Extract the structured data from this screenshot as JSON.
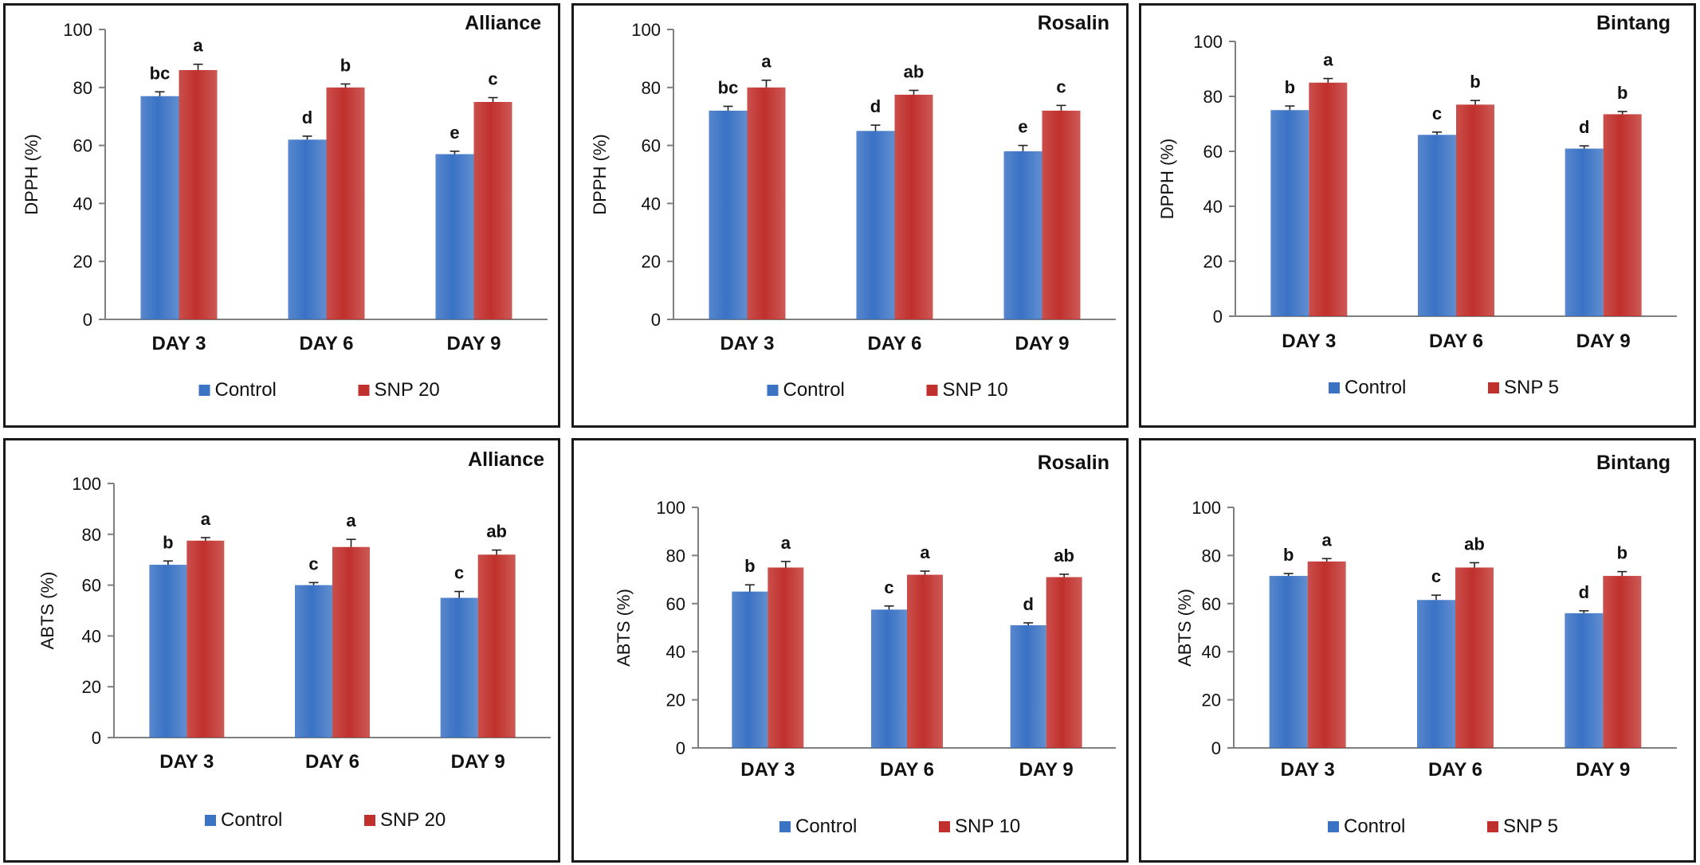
{
  "colors": {
    "control": "#3a72c4",
    "treatment": "#c0302c",
    "axis": "#7f7f7f"
  },
  "chart_data": [
    {
      "type": "bar",
      "title": "Alliance",
      "ylabel": "DPPH (%)",
      "ylim": [
        0,
        100
      ],
      "yticks": [
        "0",
        "20",
        "40",
        "60",
        "80",
        "100"
      ],
      "categories": [
        "DAY 3",
        "DAY 6",
        "DAY 9"
      ],
      "series": [
        {
          "name": "Control",
          "values": [
            77,
            62,
            57
          ],
          "errors": [
            1.5,
            1.2,
            1.0
          ],
          "letters": [
            "bc",
            "d",
            "e"
          ]
        },
        {
          "name": "SNP 20",
          "values": [
            86,
            80,
            75
          ],
          "errors": [
            2.0,
            1.2,
            1.5
          ],
          "letters": [
            "a",
            "b",
            "c"
          ]
        }
      ]
    },
    {
      "type": "bar",
      "title": "Rosalin",
      "ylabel": "DPPH (%)",
      "ylim": [
        0,
        100
      ],
      "yticks": [
        "0",
        "20",
        "40",
        "60",
        "80",
        "100"
      ],
      "categories": [
        "DAY 3",
        "DAY 6",
        "DAY 9"
      ],
      "series": [
        {
          "name": "Control",
          "values": [
            72,
            65,
            58
          ],
          "errors": [
            1.5,
            2.0,
            2.0
          ],
          "letters": [
            "bc",
            "d",
            "e"
          ]
        },
        {
          "name": "SNP 10",
          "values": [
            80,
            77.5,
            72
          ],
          "errors": [
            2.5,
            1.5,
            1.8
          ],
          "letters": [
            "a",
            "ab",
            "c"
          ]
        }
      ]
    },
    {
      "type": "bar",
      "title": "Bintang",
      "ylabel": "DPPH (%)",
      "ylim": [
        0,
        100
      ],
      "yticks": [
        "0",
        "20",
        "40",
        "60",
        "80",
        "100"
      ],
      "categories": [
        "DAY 3",
        "DAY 6",
        "DAY 9"
      ],
      "series": [
        {
          "name": "Control",
          "values": [
            75,
            66,
            61
          ],
          "errors": [
            1.5,
            1.0,
            1.0
          ],
          "letters": [
            "b",
            "c",
            "d"
          ]
        },
        {
          "name": "SNP 5",
          "values": [
            85,
            77,
            73.5
          ],
          "errors": [
            1.5,
            1.5,
            1.0
          ],
          "letters": [
            "a",
            "b",
            "b"
          ]
        }
      ]
    },
    {
      "type": "bar",
      "title": "Alliance",
      "ylabel": "ABTS (%)",
      "ylim": [
        0,
        100
      ],
      "yticks": [
        "0",
        "20",
        "40",
        "60",
        "80",
        "100"
      ],
      "categories": [
        "DAY 3",
        "DAY 6",
        "DAY 9"
      ],
      "series": [
        {
          "name": "Control",
          "values": [
            68,
            60,
            55
          ],
          "errors": [
            1.5,
            1.0,
            2.5
          ],
          "letters": [
            "b",
            "c",
            "c"
          ]
        },
        {
          "name": "SNP 20",
          "values": [
            77.5,
            75,
            72
          ],
          "errors": [
            1.2,
            3.0,
            1.8
          ],
          "letters": [
            "a",
            "a",
            "ab"
          ]
        }
      ]
    },
    {
      "type": "bar",
      "title": "Rosalin",
      "ylabel": "ABTS (%)",
      "ylim": [
        0,
        100
      ],
      "yticks": [
        "0",
        "20",
        "40",
        "60",
        "80",
        "100"
      ],
      "categories": [
        "DAY 3",
        "DAY 6",
        "DAY 9"
      ],
      "series": [
        {
          "name": "Control",
          "values": [
            65,
            57.5,
            51
          ],
          "errors": [
            2.8,
            1.5,
            1.0
          ],
          "letters": [
            "b",
            "c",
            "d"
          ]
        },
        {
          "name": "SNP 10",
          "values": [
            75,
            72,
            71
          ],
          "errors": [
            2.5,
            1.5,
            1.2
          ],
          "letters": [
            "a",
            "a",
            "ab"
          ]
        }
      ]
    },
    {
      "type": "bar",
      "title": "Bintang",
      "ylabel": "ABTS (%)",
      "ylim": [
        0,
        100
      ],
      "yticks": [
        "0",
        "20",
        "40",
        "60",
        "80",
        "100"
      ],
      "categories": [
        "DAY 3",
        "DAY 6",
        "DAY 9"
      ],
      "series": [
        {
          "name": "Control",
          "values": [
            71.5,
            61.5,
            56
          ],
          "errors": [
            1.0,
            2.0,
            1.0
          ],
          "letters": [
            "b",
            "c",
            "d"
          ]
        },
        {
          "name": "SNP 5",
          "values": [
            77.5,
            75,
            71.5
          ],
          "errors": [
            1.2,
            2.0,
            1.8
          ],
          "letters": [
            "a",
            "ab",
            "b"
          ]
        }
      ]
    }
  ]
}
